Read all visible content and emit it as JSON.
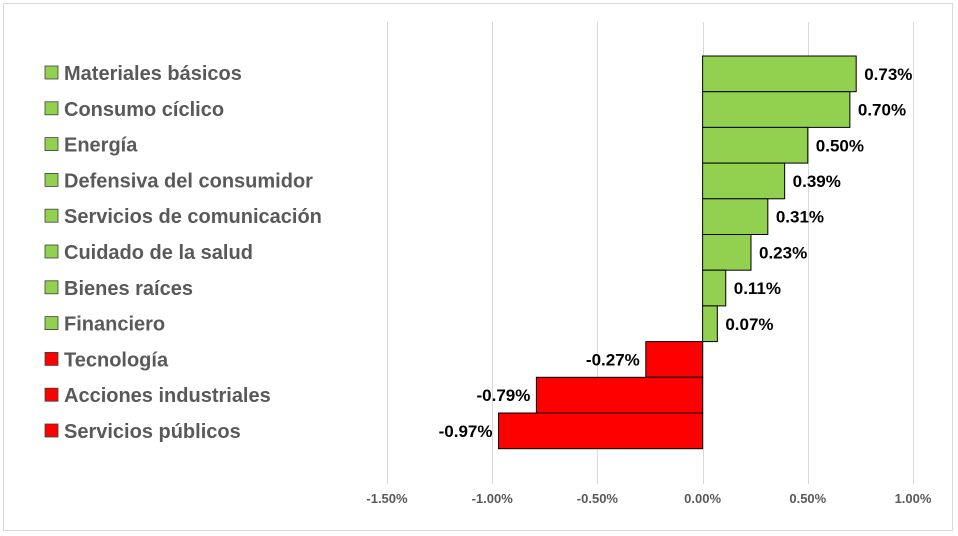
{
  "chart_data": {
    "type": "bar",
    "orientation": "horizontal",
    "categories": [
      "Materiales básicos",
      "Consumo cíclico",
      "Energía",
      "Defensiva del consumidor",
      "Servicios de comunicación",
      "Cuidado de la salud",
      "Bienes raíces",
      "Financiero",
      "Tecnología",
      "Acciones industriales",
      "Servicios públicos"
    ],
    "values": [
      0.73,
      0.7,
      0.5,
      0.39,
      0.31,
      0.23,
      0.11,
      0.07,
      -0.27,
      -0.79,
      -0.97
    ],
    "value_labels": [
      "0.73%",
      "0.70%",
      "0.50%",
      "0.39%",
      "0.31%",
      "0.23%",
      "0.11%",
      "0.07%",
      "-0.27%",
      "-0.79%",
      "-0.97%"
    ],
    "xlim": [
      -1.5,
      1.0
    ],
    "xticks": [
      -1.5,
      -1.0,
      -0.5,
      0.0,
      0.5,
      1.0
    ],
    "xtick_labels": [
      "-1.50%",
      "-1.00%",
      "-0.50%",
      "0.00%",
      "0.50%",
      "1.00%"
    ],
    "title": "",
    "xlabel": "",
    "ylabel": "",
    "grid": "vertical",
    "legend_position": "left",
    "colors": {
      "positive": "#92d050",
      "negative": "#ff0000",
      "bar_border": "#000000",
      "gridline": "#d9d9d9",
      "legend_text": "#595959"
    }
  }
}
